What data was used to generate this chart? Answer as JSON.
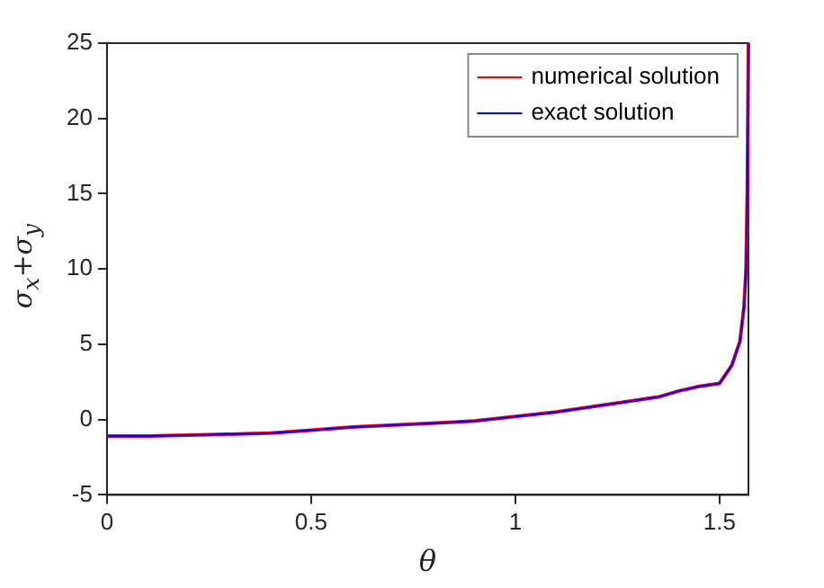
{
  "chart_data": {
    "type": "line",
    "xlabel": "θ",
    "ylabel": "σ$_{x}$+σ$_{y}$",
    "xlim": [
      0,
      1.5708
    ],
    "ylim": [
      -5,
      25
    ],
    "xticks": [
      0,
      0.5,
      1,
      1.5
    ],
    "yticks": [
      -5,
      0,
      5,
      10,
      15,
      20,
      25
    ],
    "x": [
      0,
      0.1,
      0.25,
      0.4,
      0.5,
      0.6,
      0.75,
      0.9,
      1.0,
      1.1,
      1.25,
      1.35,
      1.4,
      1.45,
      1.5,
      1.53,
      1.55,
      1.56,
      1.565,
      1.568,
      1.5708
    ],
    "series": [
      {
        "name": "numerical solution",
        "color": "#ff0000",
        "values": [
          -1.1,
          -1.1,
          -1.0,
          -0.9,
          -0.7,
          -0.5,
          -0.3,
          -0.1,
          0.2,
          0.5,
          1.1,
          1.5,
          1.9,
          2.2,
          2.4,
          3.6,
          5.2,
          7.5,
          10,
          15,
          25
        ]
      },
      {
        "name": "exact solution",
        "color": "#0000ff",
        "values": [
          -1.1,
          -1.1,
          -1.0,
          -0.9,
          -0.7,
          -0.5,
          -0.3,
          -0.1,
          0.2,
          0.5,
          1.1,
          1.5,
          1.9,
          2.2,
          2.4,
          3.6,
          5.2,
          7.5,
          10,
          15,
          25
        ]
      }
    ],
    "legend": "top right",
    "grid": false,
    "marker": "none",
    "line_style": "solid"
  }
}
